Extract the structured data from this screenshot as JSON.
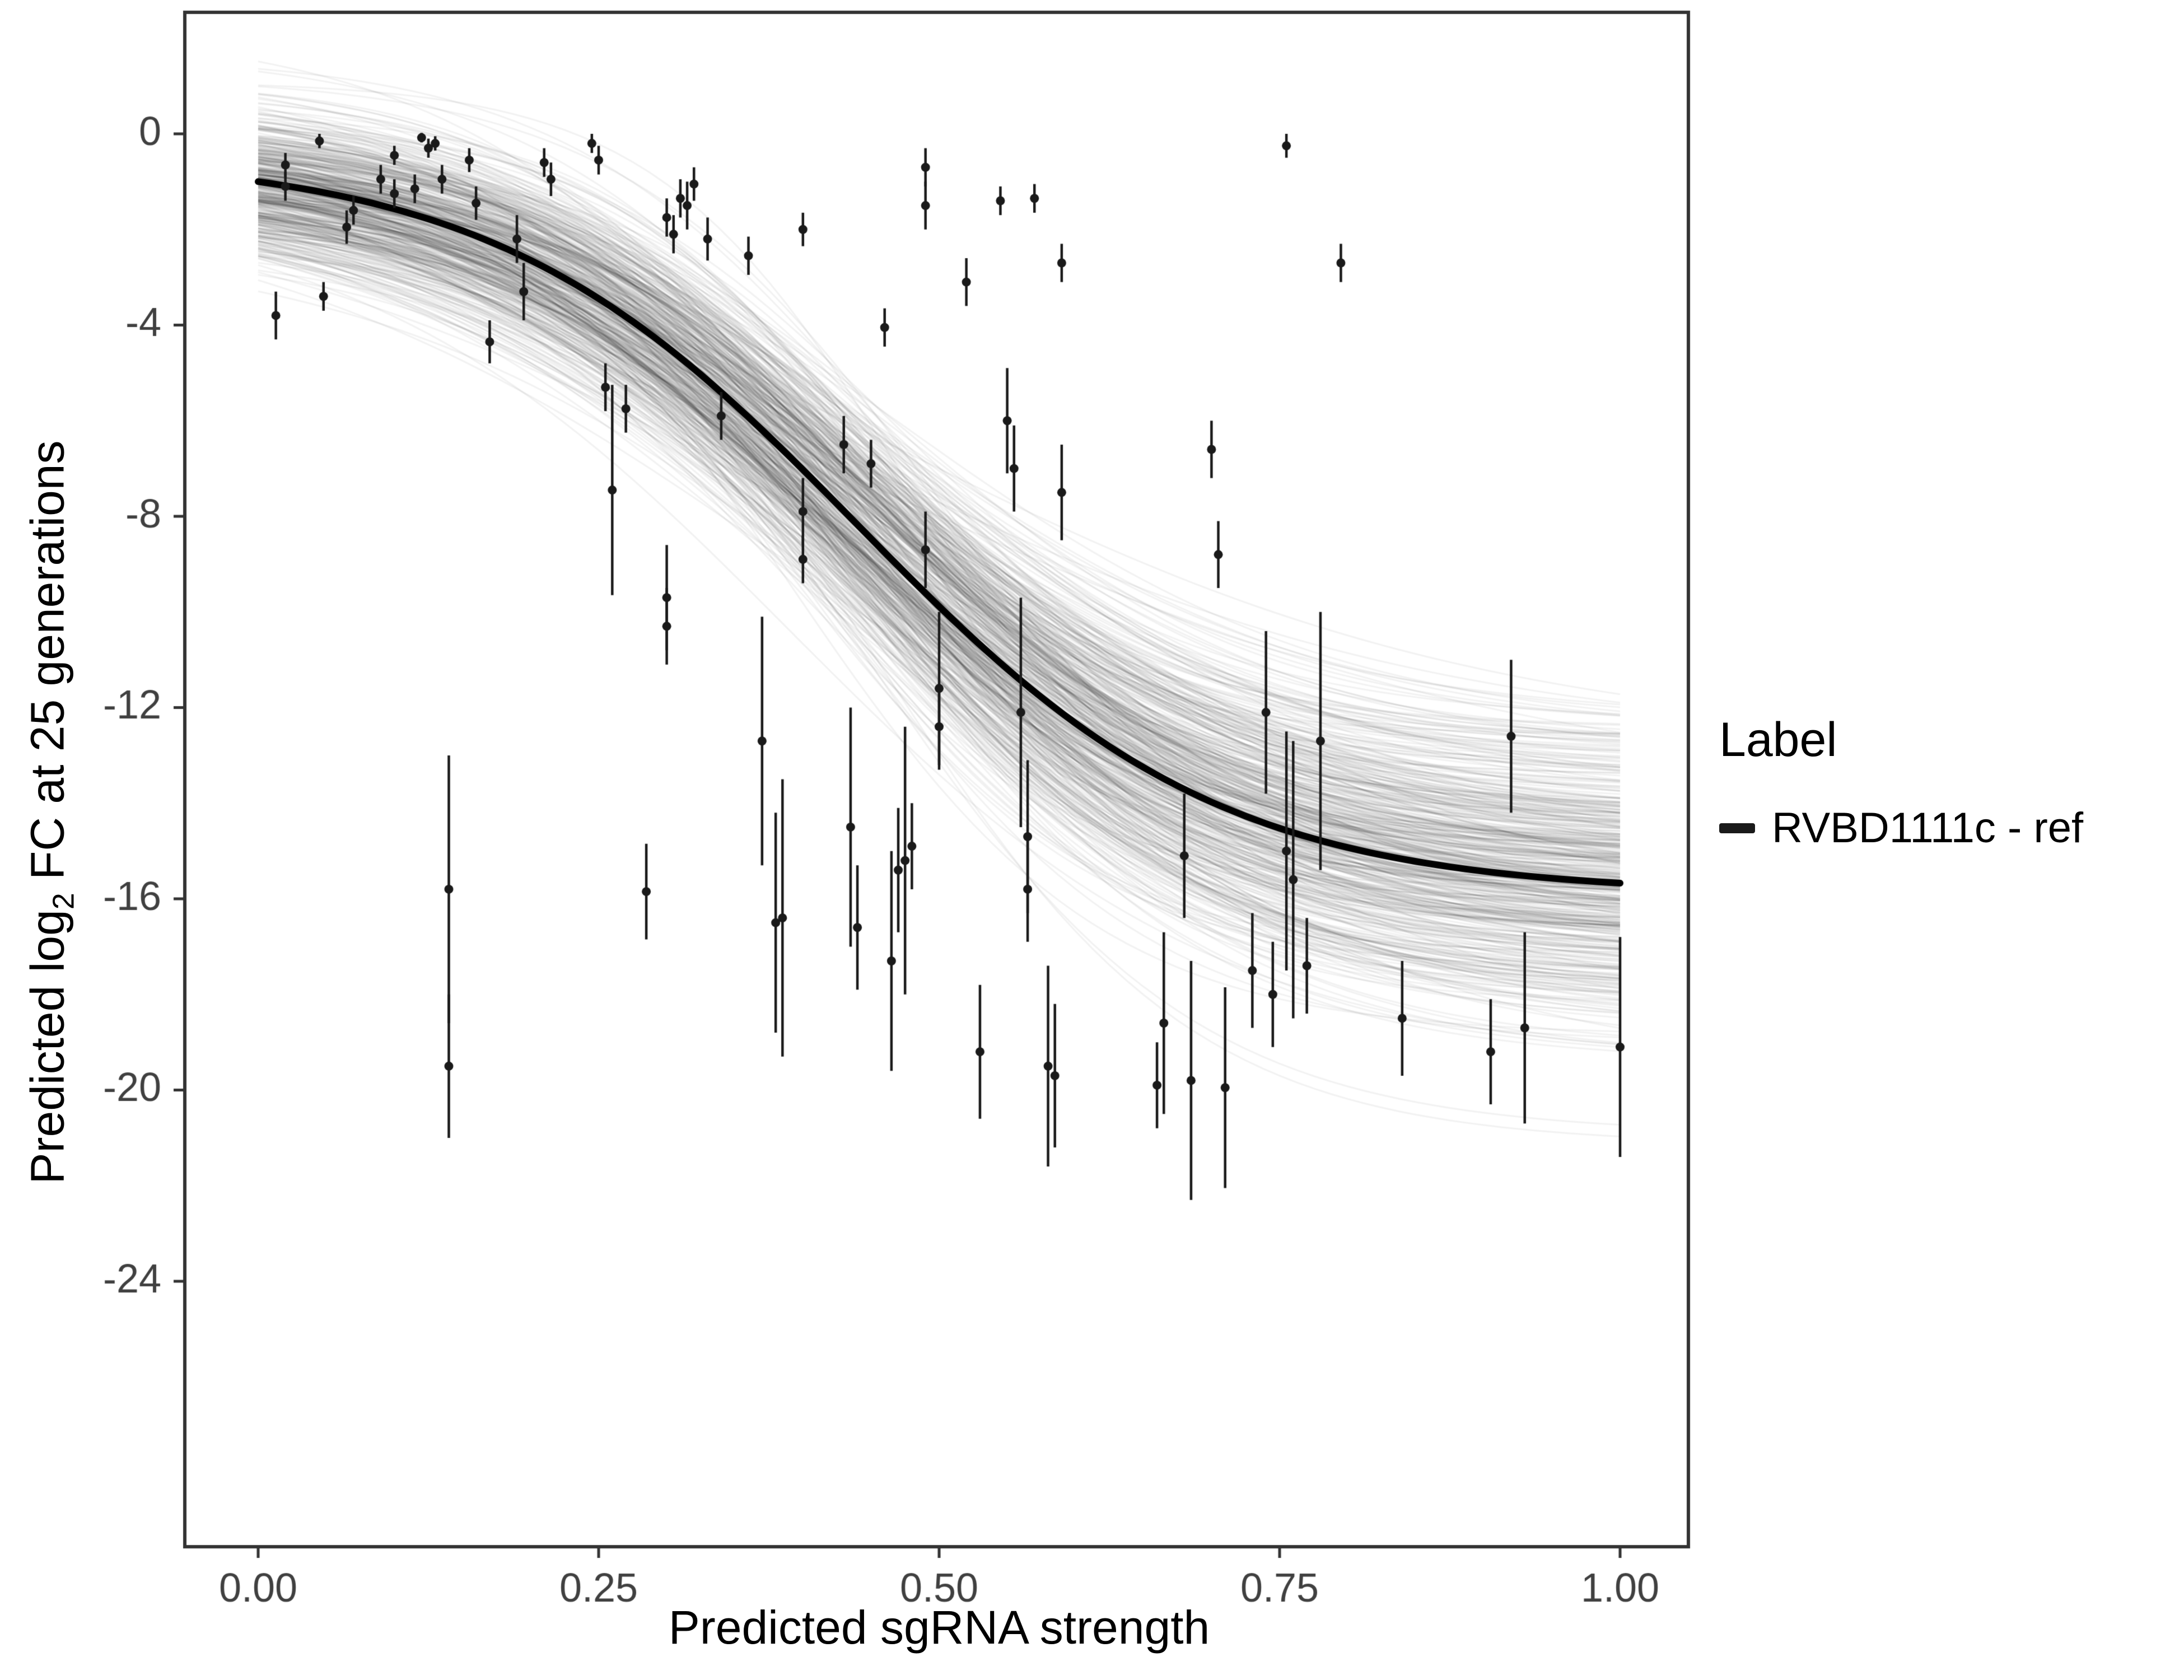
{
  "figure": {
    "background": "#ffffff"
  },
  "axes": {
    "x": {
      "title": "Predicted sgRNA strength",
      "ticks": [
        0,
        0.25,
        0.5,
        0.75,
        1.0
      ],
      "tick_labels": [
        "0.00",
        "0.25",
        "0.50",
        "0.75",
        "1.00"
      ],
      "range": [
        -0.054,
        1.05
      ]
    },
    "y": {
      "title_prefix": "Predicted  log",
      "title_sub": "2",
      "title_suffix": " FC at 25 generations",
      "ticks": [
        0,
        -4,
        -8,
        -12,
        -16,
        -20,
        -24
      ],
      "tick_labels": [
        "0",
        "-4",
        "-8",
        "-12",
        "-16",
        "-20",
        "-24"
      ],
      "range": [
        2.54,
        -29.55
      ]
    }
  },
  "legend": {
    "title": "Label",
    "entries": [
      {
        "label": "RVBD1111c - ref",
        "color": "#1a1a1a"
      }
    ]
  },
  "chart_data": {
    "type": "scatter",
    "title": "",
    "xlabel": "Predicted sgRNA strength",
    "ylabel": "Predicted log2 FC at 25 generations",
    "xlim": [
      -0.054,
      1.05
    ],
    "ylim": [
      -29.55,
      2.54
    ],
    "grid": false,
    "legend_position": "right",
    "points": [
      [
        0.013,
        -3.8,
        0.5
      ],
      [
        0.02,
        -0.65,
        0.25
      ],
      [
        0.02,
        -1.1,
        0.3
      ],
      [
        0.045,
        -0.15,
        0.15
      ],
      [
        0.048,
        -3.4,
        0.3
      ],
      [
        0.065,
        -1.95,
        0.35
      ],
      [
        0.07,
        -1.6,
        0.3
      ],
      [
        0.09,
        -0.95,
        0.3
      ],
      [
        0.1,
        -0.45,
        0.2
      ],
      [
        0.1,
        -1.25,
        0.3
      ],
      [
        0.115,
        -1.15,
        0.3
      ],
      [
        0.12,
        -0.08,
        0.1
      ],
      [
        0.125,
        -0.3,
        0.2
      ],
      [
        0.13,
        -0.2,
        0.15
      ],
      [
        0.135,
        -0.95,
        0.3
      ],
      [
        0.14,
        -15.8,
        2.8
      ],
      [
        0.14,
        -19.5,
        1.5
      ],
      [
        0.155,
        -0.55,
        0.25
      ],
      [
        0.16,
        -1.45,
        0.35
      ],
      [
        0.17,
        -4.35,
        0.45
      ],
      [
        0.19,
        -2.2,
        0.5
      ],
      [
        0.195,
        -3.3,
        0.6
      ],
      [
        0.21,
        -0.6,
        0.3
      ],
      [
        0.215,
        -0.95,
        0.35
      ],
      [
        0.245,
        -0.2,
        0.2
      ],
      [
        0.25,
        -0.55,
        0.3
      ],
      [
        0.255,
        -5.3,
        0.5
      ],
      [
        0.26,
        -7.45,
        2.2
      ],
      [
        0.27,
        -5.75,
        0.5
      ],
      [
        0.285,
        -15.85,
        1.0
      ],
      [
        0.3,
        -9.7,
        1.1
      ],
      [
        0.3,
        -10.3,
        0.8
      ],
      [
        0.3,
        -1.75,
        0.4
      ],
      [
        0.305,
        -2.1,
        0.4
      ],
      [
        0.31,
        -1.35,
        0.4
      ],
      [
        0.315,
        -1.5,
        0.5
      ],
      [
        0.32,
        -1.05,
        0.35
      ],
      [
        0.33,
        -2.2,
        0.45
      ],
      [
        0.34,
        -5.9,
        0.5
      ],
      [
        0.36,
        -2.55,
        0.4
      ],
      [
        0.37,
        -12.7,
        2.6
      ],
      [
        0.38,
        -16.5,
        2.3
      ],
      [
        0.385,
        -16.4,
        2.9
      ],
      [
        0.4,
        -7.9,
        0.7
      ],
      [
        0.4,
        -8.9,
        0.5
      ],
      [
        0.4,
        -2.0,
        0.35
      ],
      [
        0.43,
        -6.5,
        0.6
      ],
      [
        0.435,
        -14.5,
        2.5
      ],
      [
        0.44,
        -16.6,
        1.3
      ],
      [
        0.45,
        -6.9,
        0.5
      ],
      [
        0.46,
        -4.05,
        0.4
      ],
      [
        0.465,
        -17.3,
        2.3
      ],
      [
        0.47,
        -15.4,
        1.3
      ],
      [
        0.475,
        -15.2,
        2.8
      ],
      [
        0.48,
        -14.9,
        0.9
      ],
      [
        0.49,
        -0.7,
        0.4
      ],
      [
        0.49,
        -1.5,
        0.5
      ],
      [
        0.49,
        -8.7,
        0.8
      ],
      [
        0.5,
        -11.6,
        1.6
      ],
      [
        0.5,
        -12.4,
        0.9
      ],
      [
        0.52,
        -3.1,
        0.5
      ],
      [
        0.53,
        -19.2,
        1.4
      ],
      [
        0.545,
        -1.4,
        0.3
      ],
      [
        0.55,
        -6.0,
        1.1
      ],
      [
        0.555,
        -7.0,
        0.9
      ],
      [
        0.56,
        -12.1,
        2.4
      ],
      [
        0.565,
        -14.7,
        1.6
      ],
      [
        0.565,
        -15.8,
        1.1
      ],
      [
        0.57,
        -1.35,
        0.3
      ],
      [
        0.58,
        -19.5,
        2.1
      ],
      [
        0.585,
        -19.7,
        1.5
      ],
      [
        0.59,
        -2.7,
        0.4
      ],
      [
        0.59,
        -7.5,
        1.0
      ],
      [
        0.66,
        -19.9,
        0.9
      ],
      [
        0.665,
        -18.6,
        1.9
      ],
      [
        0.68,
        -15.1,
        1.3
      ],
      [
        0.685,
        -19.8,
        2.5
      ],
      [
        0.7,
        -6.6,
        0.6
      ],
      [
        0.705,
        -8.8,
        0.7
      ],
      [
        0.71,
        -19.95,
        2.1
      ],
      [
        0.73,
        -17.5,
        1.2
      ],
      [
        0.74,
        -12.1,
        1.7
      ],
      [
        0.745,
        -18.0,
        1.1
      ],
      [
        0.755,
        -15.0,
        2.5
      ],
      [
        0.76,
        -15.6,
        2.9
      ],
      [
        0.755,
        -0.25,
        0.25
      ],
      [
        0.77,
        -17.4,
        1.0
      ],
      [
        0.78,
        -12.7,
        2.7
      ],
      [
        0.795,
        -2.7,
        0.4
      ],
      [
        0.84,
        -18.5,
        1.2
      ],
      [
        0.905,
        -19.2,
        1.1
      ],
      [
        0.92,
        -12.6,
        1.6
      ],
      [
        0.93,
        -18.7,
        2.0
      ],
      [
        1.0,
        -19.1,
        2.3
      ]
    ],
    "fit_curve": {
      "model": "logistic",
      "name": "RVBD1111c - ref",
      "top": -0.45,
      "bottom": -15.9,
      "midpoint": 0.44,
      "slope": 7.5
    },
    "ensemble": {
      "count": 500,
      "top_sd": 0.8,
      "bottom_sd": 1.6,
      "midpoint_sd": 0.028,
      "slope_sd": 1.2,
      "opacity": 0.05,
      "seed": 42
    },
    "colors": {
      "point": "#1a1a1a",
      "curve": "#000000",
      "ensemble": "#000000",
      "panel_border": "#333333",
      "tick_label": "#404040"
    }
  }
}
